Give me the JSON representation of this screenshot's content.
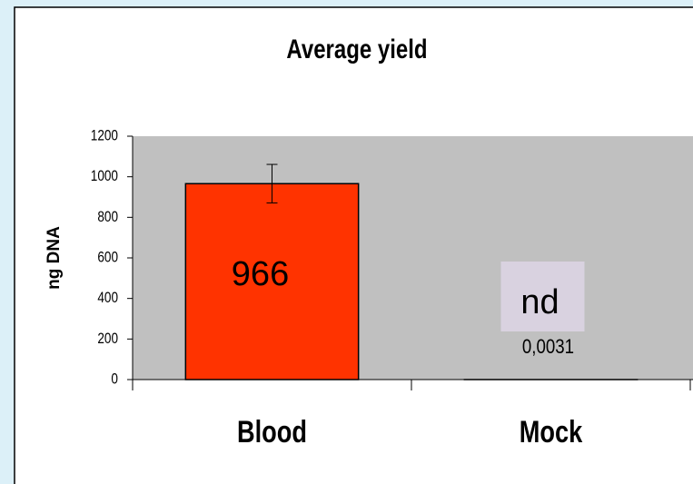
{
  "chart_data": {
    "type": "bar",
    "title": "Average yield",
    "ylabel": "ng DNA",
    "categories": [
      "Blood",
      "Mock"
    ],
    "values": [
      966,
      0.0031
    ],
    "value_labels": [
      "966",
      "0,0031"
    ],
    "errors": [
      95,
      null
    ],
    "annotations": [
      "nd"
    ],
    "color": "#ff3300",
    "ylim": [
      0,
      1200
    ],
    "yticks": [
      0,
      200,
      400,
      600,
      800,
      1000,
      1200
    ],
    "grid": false
  }
}
